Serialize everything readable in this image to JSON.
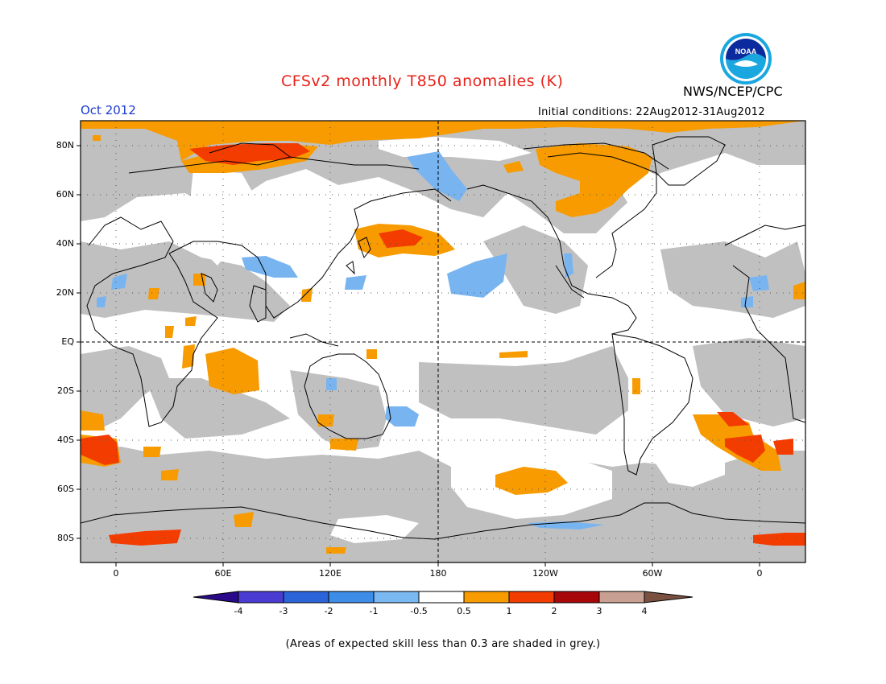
{
  "header": {
    "title": "CFSv2 monthly T850 anomalies (K)",
    "month": "Oct 2012",
    "initial_conditions": "Initial conditions: 22Aug2012-31Aug2012",
    "organization": "NWS/NCEP/CPC",
    "logo_text": "NOAA"
  },
  "map": {
    "lat_labels": [
      "80N",
      "60N",
      "40N",
      "20N",
      "EQ",
      "20S",
      "40S",
      "60S",
      "80S"
    ],
    "lon_labels": [
      "0",
      "60E",
      "120E",
      "180",
      "120W",
      "60W",
      "0"
    ],
    "low_skill_color": "#c0c0c0",
    "colors": {
      "neg_0_5_to_1": "#78b4f0",
      "neg_1_to_2": "#4890ea",
      "pos_0_5_to_1": "#f79b00",
      "pos_1_to_2": "#f33c00"
    }
  },
  "colorbar": {
    "labels": [
      "-4",
      "-3",
      "-2",
      "-1",
      "-0.5",
      "0.5",
      "1",
      "2",
      "3",
      "4"
    ],
    "colors": [
      "#2a0a8a",
      "#4a3cd2",
      "#2a64d8",
      "#3c8ce8",
      "#7ab8f2",
      "#ffffff",
      "#f79b00",
      "#f33c00",
      "#a8070a",
      "#c8a092",
      "#7a5040"
    ]
  },
  "footer": {
    "note": "(Areas of expected skill less than 0.3 are shaded in grey.)"
  }
}
